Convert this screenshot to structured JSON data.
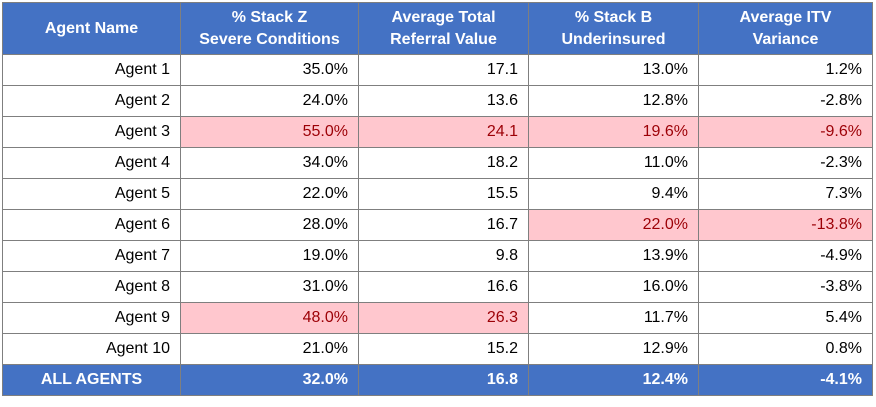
{
  "table": {
    "headers": [
      "Agent Name",
      "% Stack Z\nSevere Conditions",
      "Average Total\nReferral Value",
      "% Stack B\nUnderinsured",
      "Average ITV\nVariance"
    ],
    "rows": [
      {
        "name": "Agent 1",
        "cells": [
          "35.0%",
          "17.1",
          "13.0%",
          "1.2%"
        ],
        "highlighted": [
          false,
          false,
          false,
          false
        ]
      },
      {
        "name": "Agent 2",
        "cells": [
          "24.0%",
          "13.6",
          "12.8%",
          "-2.8%"
        ],
        "highlighted": [
          false,
          false,
          false,
          false
        ]
      },
      {
        "name": "Agent 3",
        "cells": [
          "55.0%",
          "24.1",
          "19.6%",
          "-9.6%"
        ],
        "highlighted": [
          true,
          true,
          true,
          true
        ]
      },
      {
        "name": "Agent 4",
        "cells": [
          "34.0%",
          "18.2",
          "11.0%",
          "-2.3%"
        ],
        "highlighted": [
          false,
          false,
          false,
          false
        ]
      },
      {
        "name": "Agent 5",
        "cells": [
          "22.0%",
          "15.5",
          "9.4%",
          "7.3%"
        ],
        "highlighted": [
          false,
          false,
          false,
          false
        ]
      },
      {
        "name": "Agent 6",
        "cells": [
          "28.0%",
          "16.7",
          "22.0%",
          "-13.8%"
        ],
        "highlighted": [
          false,
          false,
          true,
          true
        ]
      },
      {
        "name": "Agent 7",
        "cells": [
          "19.0%",
          "9.8",
          "13.9%",
          "-4.9%"
        ],
        "highlighted": [
          false,
          false,
          false,
          false
        ]
      },
      {
        "name": "Agent 8",
        "cells": [
          "31.0%",
          "16.6",
          "16.0%",
          "-3.8%"
        ],
        "highlighted": [
          false,
          false,
          false,
          false
        ]
      },
      {
        "name": "Agent 9",
        "cells": [
          "48.0%",
          "26.3",
          "11.7%",
          "5.4%"
        ],
        "highlighted": [
          true,
          true,
          false,
          false
        ]
      },
      {
        "name": "Agent 10",
        "cells": [
          "21.0%",
          "15.2",
          "12.9%",
          "0.8%"
        ],
        "highlighted": [
          false,
          false,
          false,
          false
        ]
      }
    ],
    "total": {
      "name": "ALL AGENTS",
      "cells": [
        "32.0%",
        "16.8",
        "12.4%",
        "-4.1%"
      ]
    }
  },
  "colors": {
    "header_fill": "#4472c4",
    "header_text": "#ffffff",
    "highlight_fill": "#ffc7ce",
    "highlight_text": "#9c0006",
    "border": "#7f7f7f"
  }
}
